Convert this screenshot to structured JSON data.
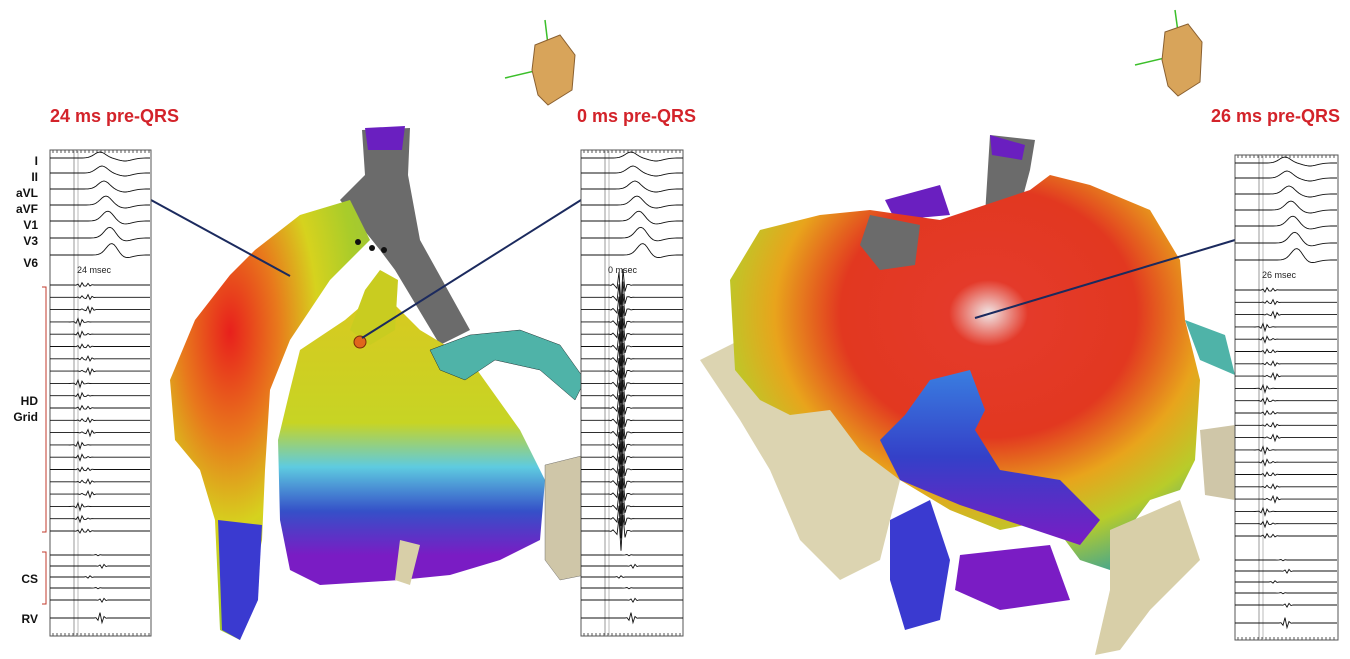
{
  "panels": [
    {
      "title": "24 ms pre-QRS",
      "timing": "24 msec"
    },
    {
      "title": "0 ms pre-QRS",
      "timing": "0 msec"
    },
    {
      "title": "26 ms pre-QRS",
      "timing": "26 msec"
    }
  ],
  "leads": [
    "I",
    "II",
    "aVL",
    "aVF",
    "V1",
    "V3",
    "V6"
  ],
  "hd_grid": [
    "HD",
    "Grid"
  ],
  "cs": "CS",
  "rv": "RV"
}
